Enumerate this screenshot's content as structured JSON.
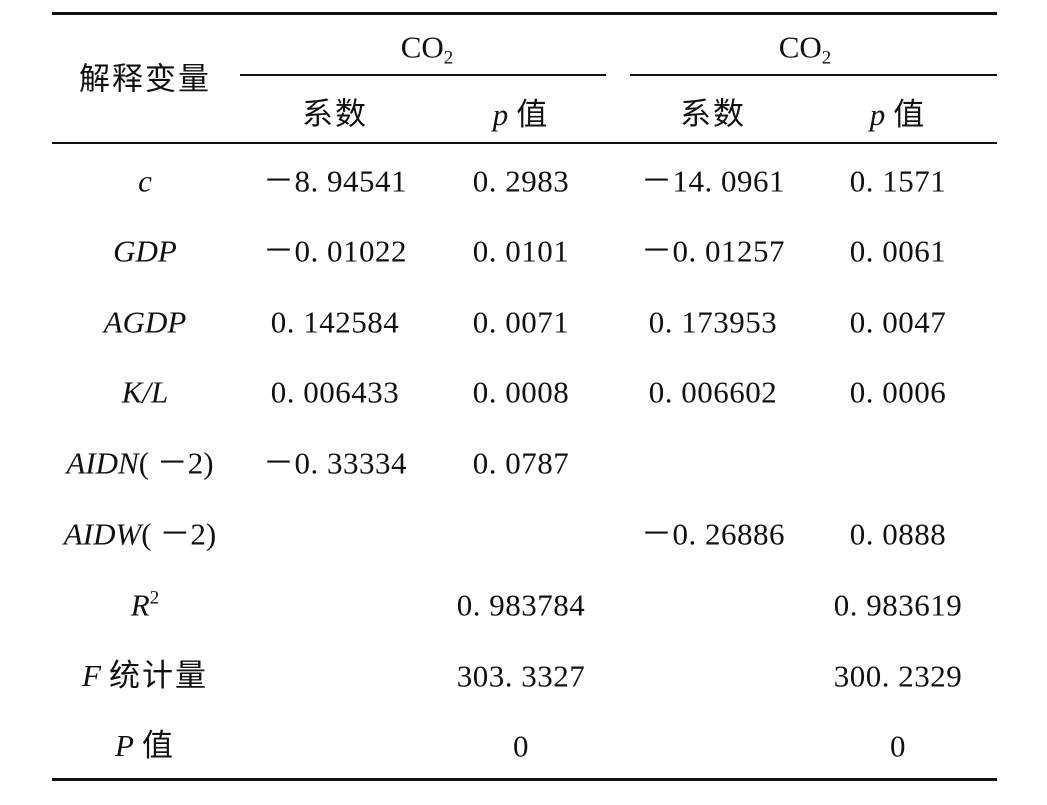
{
  "table": {
    "header": {
      "col0": "解释变量",
      "group1": {
        "base": "CO",
        "sub": "2"
      },
      "group2": {
        "base": "CO",
        "sub": "2"
      },
      "coef": "系数",
      "p_sym": "p",
      "p_word": "值"
    },
    "rows": [
      {
        "var": "c",
        "c1": "－8. 94541",
        "p1": "0. 2983",
        "c2": "－14. 0961",
        "p2": "0. 1571"
      },
      {
        "var": "GDP",
        "c1": "－0. 01022",
        "p1": "0. 0101",
        "c2": "－0. 01257",
        "p2": "0. 0061"
      },
      {
        "var": "AGDP",
        "c1": "0. 142584",
        "p1": "0. 0071",
        "c2": "0. 173953",
        "p2": "0. 0047"
      },
      {
        "var": "K/L",
        "c1": "0. 006433",
        "p1": "0. 0008",
        "c2": "0. 006602",
        "p2": "0. 0006"
      },
      {
        "var": "AIDN",
        "var_suffix": "( －2)",
        "c1": "－0. 33334",
        "p1": "0. 0787",
        "c2": "",
        "p2": ""
      },
      {
        "var": "AIDW",
        "var_suffix": "( －2)",
        "c1": "",
        "p1": "",
        "c2": "－0. 26886",
        "p2": "0. 0888"
      }
    ],
    "stats": [
      {
        "label_base": "R",
        "label_sup": "2",
        "v1": "0. 983784",
        "v2": "0. 983619"
      },
      {
        "label_sym": "F",
        "label_word": "统计量",
        "v1": "303. 3327",
        "v2": "300. 2329"
      },
      {
        "label_sym": "P",
        "label_word": "值",
        "v1": "0",
        "v2": "0"
      }
    ]
  }
}
